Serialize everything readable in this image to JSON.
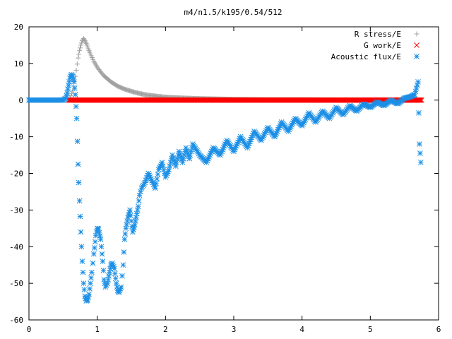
{
  "chart_data": {
    "type": "scatter",
    "title": "m4/n1.5/k195/0.54/512",
    "xlabel": "",
    "ylabel": "",
    "xlim": [
      0,
      6
    ],
    "ylim": [
      -60,
      20
    ],
    "x_ticks": [
      "0",
      "1",
      "2",
      "3",
      "4",
      "5",
      "6"
    ],
    "y_ticks": [
      "20",
      "10",
      "0",
      "-10",
      "-20",
      "-30",
      "-40",
      "-50",
      "-60"
    ],
    "grid": false,
    "legend_position": "top-right",
    "series": [
      {
        "name": "R stress/E",
        "marker": "plus",
        "color": "#a0a0a0",
        "x": [
          0.6,
          0.64,
          0.68,
          0.72,
          0.74,
          0.76,
          0.78,
          0.8,
          0.82,
          0.84,
          0.86,
          0.88,
          0.9,
          0.95,
          1.0,
          1.05,
          1.1,
          1.15,
          1.2,
          1.3,
          1.4,
          1.5,
          1.6,
          1.7,
          1.8,
          2.0,
          2.2,
          2.5,
          3.0,
          3.5,
          4.0,
          4.5,
          5.0,
          5.5,
          5.75
        ],
        "y": [
          0.5,
          2.5,
          6.5,
          11.5,
          13.5,
          15.0,
          16.2,
          16.8,
          16.2,
          15.5,
          14.5,
          13.5,
          12.6,
          10.6,
          9.0,
          7.7,
          6.6,
          5.8,
          5.0,
          3.8,
          3.0,
          2.4,
          1.9,
          1.5,
          1.2,
          0.8,
          0.6,
          0.4,
          0.2,
          0.1,
          0.1,
          0.05,
          0.05,
          0.05,
          0.05
        ]
      },
      {
        "name": "G work/E",
        "marker": "cross",
        "color": "#ff0000",
        "x": [
          0.58,
          0.75,
          1.0,
          1.25,
          1.5,
          1.75,
          2.0,
          2.25,
          2.5,
          2.75,
          3.0,
          3.25,
          3.5,
          3.75,
          4.0,
          4.25,
          4.5,
          4.75,
          5.0,
          5.25,
          5.5,
          5.75
        ],
        "y": [
          0,
          0,
          0,
          0,
          0,
          0,
          0,
          0,
          0,
          0,
          0,
          0,
          0,
          0,
          0,
          0,
          0,
          0,
          0,
          0,
          0,
          0
        ]
      },
      {
        "name": "Acoustic flux/E",
        "marker": "star",
        "color": "#1c8fe6",
        "x": [
          0.0,
          0.1,
          0.2,
          0.3,
          0.4,
          0.5,
          0.54,
          0.56,
          0.58,
          0.6,
          0.62,
          0.64,
          0.66,
          0.68,
          0.7,
          0.72,
          0.74,
          0.76,
          0.78,
          0.8,
          0.82,
          0.84,
          0.86,
          0.88,
          0.9,
          0.92,
          0.95,
          0.98,
          1.0,
          1.02,
          1.05,
          1.08,
          1.1,
          1.12,
          1.15,
          1.18,
          1.2,
          1.22,
          1.25,
          1.28,
          1.3,
          1.32,
          1.35,
          1.38,
          1.4,
          1.42,
          1.45,
          1.48,
          1.5,
          1.52,
          1.55,
          1.58,
          1.6,
          1.62,
          1.65,
          1.7,
          1.75,
          1.8,
          1.85,
          1.9,
          1.95,
          2.0,
          2.05,
          2.1,
          2.15,
          2.2,
          2.25,
          2.3,
          2.35,
          2.4,
          2.5,
          2.6,
          2.7,
          2.8,
          2.9,
          3.0,
          3.1,
          3.2,
          3.3,
          3.4,
          3.5,
          3.6,
          3.7,
          3.8,
          3.9,
          4.0,
          4.1,
          4.2,
          4.3,
          4.4,
          4.5,
          4.6,
          4.7,
          4.8,
          4.9,
          5.0,
          5.1,
          5.2,
          5.3,
          5.4,
          5.5,
          5.6,
          5.65,
          5.7,
          5.72,
          5.74
        ],
        "y": [
          0,
          0,
          0,
          0,
          0,
          0,
          0.5,
          2.0,
          4.0,
          6.0,
          7.0,
          6.5,
          5.0,
          1.5,
          -5.0,
          -17.5,
          -27.5,
          -36.0,
          -44.0,
          -50.0,
          -53.5,
          -54.8,
          -54.5,
          -53.0,
          -50.0,
          -47.0,
          -42.0,
          -37.0,
          -35.0,
          -35.2,
          -38.0,
          -44.0,
          -49.0,
          -51.0,
          -50.0,
          -47.0,
          -45.0,
          -44.5,
          -46.0,
          -50.0,
          -52.0,
          -52.5,
          -51.0,
          -45.0,
          -38.0,
          -35.0,
          -32.0,
          -30.0,
          -33.0,
          -36.0,
          -34.0,
          -31.0,
          -29.0,
          -26.0,
          -24.0,
          -22.5,
          -20.0,
          -22.0,
          -24.0,
          -19.0,
          -17.0,
          -21.0,
          -19.0,
          -15.0,
          -18.0,
          -14.0,
          -17.0,
          -13.0,
          -16.0,
          -12.0,
          -15.0,
          -17.0,
          -13.0,
          -15.0,
          -11.0,
          -14.0,
          -10.0,
          -13.0,
          -8.5,
          -11.0,
          -7.5,
          -10.0,
          -6.0,
          -8.5,
          -5.0,
          -7.0,
          -3.5,
          -6.0,
          -3.0,
          -5.0,
          -2.0,
          -4.0,
          -1.5,
          -3.0,
          -1.0,
          -2.0,
          -0.5,
          -1.5,
          0.0,
          -1.0,
          0.5,
          1.0,
          1.5,
          5.0,
          -12.0,
          -17.0
        ]
      }
    ]
  }
}
